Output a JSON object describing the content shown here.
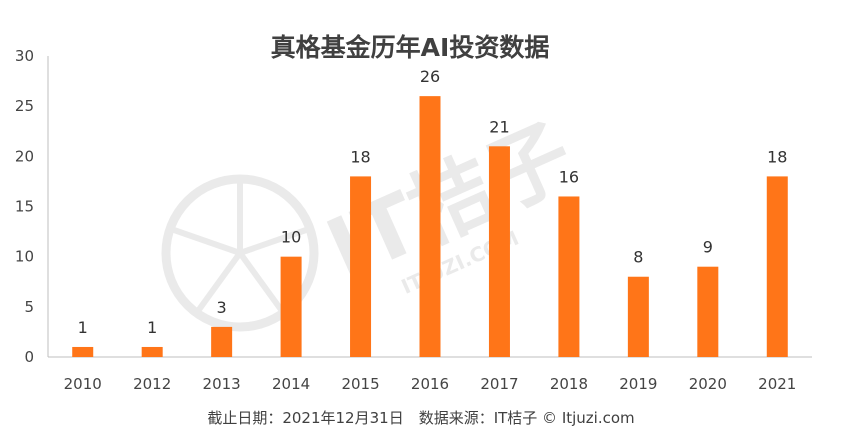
{
  "chart_data": {
    "type": "bar",
    "title": "真格基金历年AI投资数据",
    "categories": [
      "2010",
      "2012",
      "2013",
      "2014",
      "2015",
      "2016",
      "2017",
      "2018",
      "2019",
      "2020",
      "2021"
    ],
    "values": [
      1,
      1,
      3,
      10,
      18,
      26,
      21,
      16,
      8,
      9,
      18
    ],
    "ylim": [
      0,
      30
    ],
    "yticks": [
      0,
      5,
      10,
      15,
      20,
      25,
      30
    ],
    "bar_color": "#FF7518",
    "grid": false,
    "legend": "none",
    "data_labels": true
  },
  "footer": "截止日期：2021年12月31日　数据来源：IT桔子 © Itjuzi.com",
  "watermark": {
    "text": "IT桔子",
    "subtext": "ITJUZI.COM",
    "color": "#d9d9d9"
  }
}
